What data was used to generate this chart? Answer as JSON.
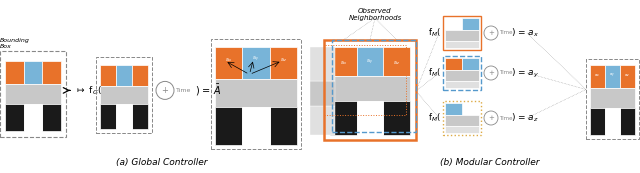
{
  "bg_color": "#ffffff",
  "orange": "#E8722A",
  "blue": "#78B4D8",
  "gray": "#C8C8C8",
  "light_gray": "#E0E0E0",
  "dark_gray": "#888888",
  "black": "#1a1a1a",
  "caption_a": "(a) Global Controller",
  "caption_b": "(b) Modular Controller",
  "title_obs": "Observed\nNeighborhoods",
  "title_bb": "Bounding\nBox"
}
